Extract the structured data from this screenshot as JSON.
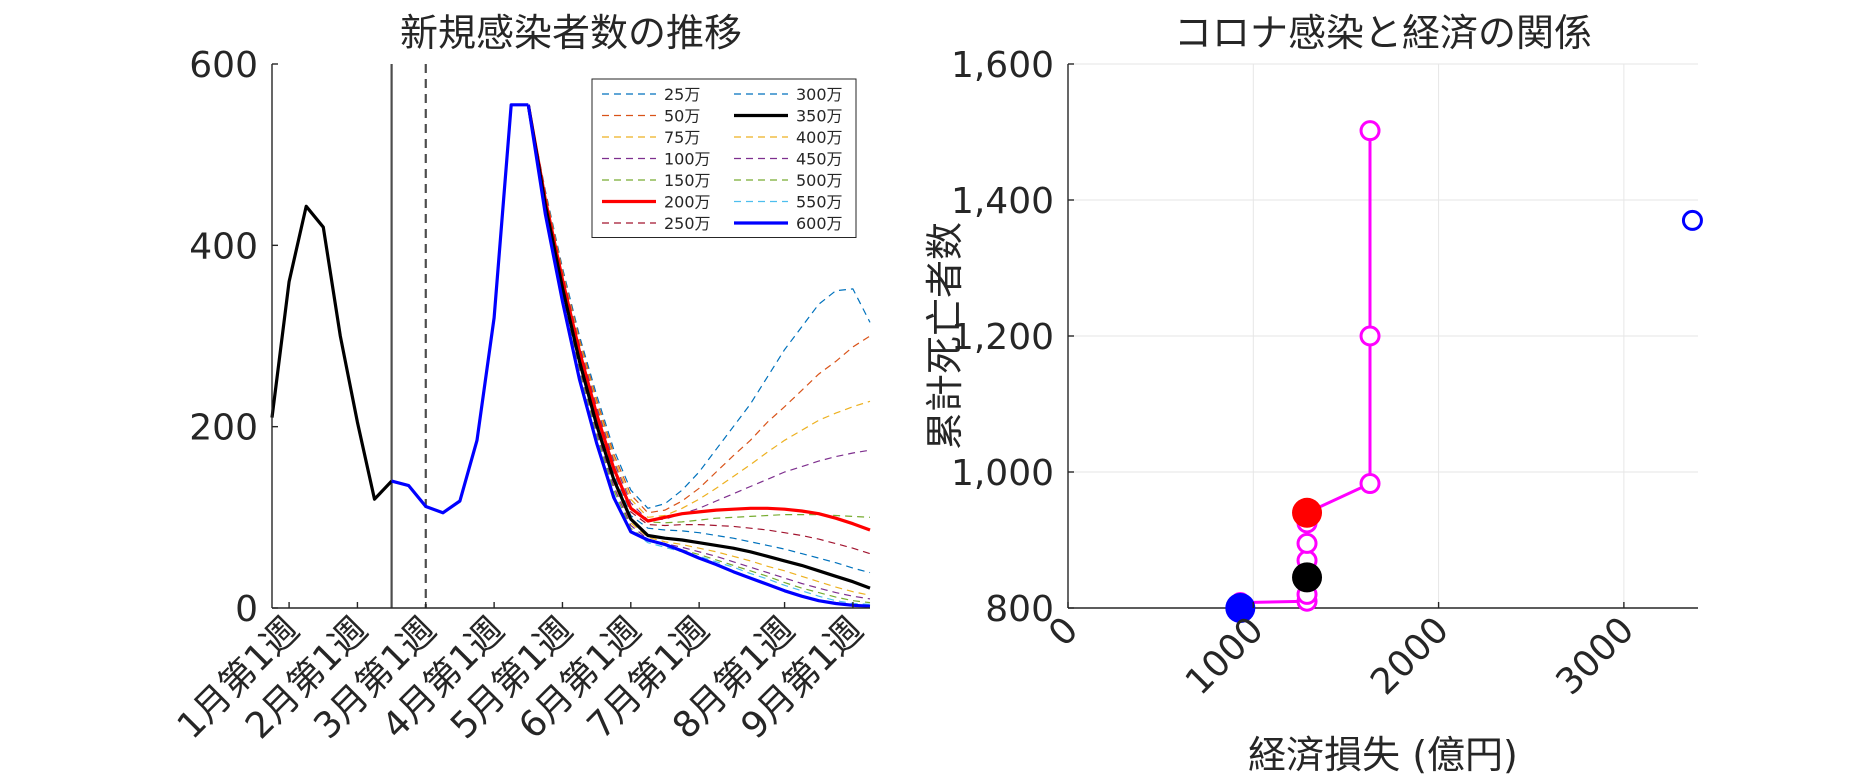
{
  "chart_data": [
    {
      "type": "line",
      "title": "新規感染者数の推移",
      "xlabel": "",
      "ylabel": "",
      "ylim": [
        0,
        600
      ],
      "yticks": [
        "0",
        "200",
        "400",
        "600"
      ],
      "xlim": [
        0,
        35
      ],
      "x_tick_positions": [
        1,
        5,
        9,
        13,
        17,
        21,
        25,
        30,
        34
      ],
      "x_tick_labels": [
        "1月第1週",
        "2月第1週",
        "3月第1週",
        "4月第1週",
        "5月第1週",
        "6月第1週",
        "7月第1週",
        "8月第1週",
        "9月第1週"
      ],
      "vertical_lines": [
        {
          "x": 7,
          "style": "solid",
          "color": "#4d4d4d"
        },
        {
          "x": 9,
          "style": "dashed",
          "color": "#4d4d4d"
        }
      ],
      "legend_position": "top-right",
      "legend": [
        "25万",
        "50万",
        "75万",
        "100万",
        "150万",
        "200万",
        "250万",
        "300万",
        "350万",
        "400万",
        "450万",
        "500万",
        "550万",
        "600万"
      ],
      "history": {
        "x": [
          0,
          1,
          2,
          3,
          4,
          5,
          6,
          7
        ],
        "y": [
          210,
          360,
          443,
          420,
          300,
          205,
          120,
          140
        ],
        "color": "#000000"
      },
      "common_blue": {
        "x": [
          7,
          8,
          9,
          10,
          11,
          12,
          13,
          14,
          15
        ],
        "y": [
          140,
          135,
          112,
          105,
          118,
          185,
          320,
          555,
          555
        ],
        "color": "#0000ff"
      },
      "scenario_x": [
        15,
        16,
        17,
        18,
        19,
        20,
        21,
        22,
        23,
        24,
        25,
        26,
        27,
        28,
        29,
        30,
        31,
        32,
        33,
        34,
        35
      ],
      "series": [
        {
          "name": "25万",
          "color": "#0072bd",
          "dash": true,
          "width": 1.2,
          "y": [
            555,
            460,
            375,
            300,
            235,
            175,
            130,
            110,
            115,
            130,
            150,
            175,
            200,
            225,
            255,
            285,
            310,
            335,
            350,
            352,
            315
          ]
        },
        {
          "name": "50万",
          "color": "#d95319",
          "dash": true,
          "width": 1.2,
          "y": [
            555,
            458,
            372,
            296,
            230,
            170,
            125,
            105,
            108,
            118,
            132,
            150,
            168,
            185,
            205,
            222,
            240,
            258,
            272,
            288,
            300
          ]
        },
        {
          "name": "75万",
          "color": "#edb120",
          "dash": true,
          "width": 1.2,
          "y": [
            555,
            456,
            370,
            293,
            226,
            166,
            120,
            100,
            102,
            110,
            120,
            132,
            145,
            158,
            172,
            185,
            196,
            207,
            215,
            222,
            228
          ]
        },
        {
          "name": "100万",
          "color": "#7e2f8e",
          "dash": true,
          "width": 1.2,
          "y": [
            555,
            454,
            368,
            290,
            222,
            162,
            116,
            97,
            98,
            104,
            110,
            118,
            126,
            134,
            142,
            150,
            156,
            162,
            167,
            171,
            174
          ]
        },
        {
          "name": "150万",
          "color": "#77ac30",
          "dash": true,
          "width": 1.2,
          "y": [
            555,
            452,
            365,
            286,
            218,
            158,
            112,
            95,
            94,
            95,
            97,
            99,
            100,
            101,
            102,
            103,
            103,
            103,
            102,
            101,
            100
          ]
        },
        {
          "name": "200万",
          "color": "#ff0000",
          "dash": false,
          "width": 3.2,
          "y": [
            555,
            450,
            362,
            283,
            214,
            154,
            110,
            96,
            100,
            104,
            106,
            108,
            109,
            110,
            110,
            109,
            107,
            104,
            99,
            93,
            86
          ]
        },
        {
          "name": "250万",
          "color": "#a2142f",
          "dash": true,
          "width": 1.2,
          "y": [
            555,
            448,
            359,
            280,
            210,
            150,
            106,
            92,
            91,
            92,
            92,
            91,
            90,
            88,
            86,
            83,
            80,
            76,
            71,
            66,
            60
          ]
        },
        {
          "name": "300万",
          "color": "#0072bd",
          "dash": true,
          "width": 1.2,
          "y": [
            555,
            446,
            356,
            276,
            206,
            146,
            102,
            88,
            86,
            85,
            83,
            80,
            77,
            73,
            69,
            65,
            60,
            55,
            50,
            44,
            39
          ]
        },
        {
          "name": "350万",
          "color": "#000000",
          "dash": false,
          "width": 3.2,
          "y": [
            555,
            444,
            353,
            272,
            202,
            142,
            98,
            80,
            77,
            75,
            72,
            69,
            66,
            62,
            57,
            52,
            47,
            41,
            35,
            29,
            22
          ]
        },
        {
          "name": "400万",
          "color": "#edb120",
          "dash": true,
          "width": 1.2,
          "y": [
            555,
            442,
            350,
            268,
            198,
            138,
            94,
            78,
            73,
            70,
            66,
            62,
            57,
            52,
            46,
            41,
            35,
            29,
            23,
            18,
            14
          ]
        },
        {
          "name": "450万",
          "color": "#7e2f8e",
          "dash": true,
          "width": 1.2,
          "y": [
            555,
            440,
            347,
            264,
            194,
            134,
            91,
            76,
            71,
            67,
            62,
            57,
            51,
            45,
            39,
            33,
            27,
            22,
            17,
            13,
            10
          ]
        },
        {
          "name": "500万",
          "color": "#77ac30",
          "dash": true,
          "width": 1.2,
          "y": [
            555,
            438,
            344,
            260,
            190,
            130,
            88,
            74,
            69,
            64,
            59,
            53,
            47,
            41,
            35,
            28,
            22,
            17,
            12,
            8,
            6
          ]
        },
        {
          "name": "550万",
          "color": "#4dbeee",
          "dash": true,
          "width": 1.2,
          "y": [
            555,
            436,
            341,
            256,
            186,
            126,
            86,
            72,
            67,
            62,
            57,
            51,
            45,
            38,
            32,
            25,
            19,
            13,
            8,
            5,
            4
          ]
        },
        {
          "name": "600万",
          "color": "#0000ff",
          "dash": false,
          "width": 3.2,
          "y": [
            555,
            434,
            338,
            252,
            182,
            122,
            84,
            75,
            70,
            63,
            55,
            48,
            40,
            33,
            26,
            19,
            13,
            8,
            5,
            3,
            2
          ]
        }
      ]
    },
    {
      "type": "scatter",
      "title": "コロナ感染と経済の関係",
      "xlabel": "経済損失 (億円)",
      "ylabel": "累計死亡者数",
      "xlim": [
        0,
        3400
      ],
      "ylim": [
        800,
        1600
      ],
      "xticks": [
        "0",
        "1000",
        "2000",
        "3000"
      ],
      "yticks": [
        "800",
        "1,000",
        "1,200",
        "1,400",
        "1,600"
      ],
      "grid": true,
      "path": {
        "color": "#ff00ff",
        "x": [
          930,
          1290,
          1290,
          1290,
          1290,
          1290,
          1290,
          1290,
          1630,
          1630,
          1630
        ],
        "y": [
          808,
          810,
          820,
          845,
          870,
          895,
          925,
          940,
          983,
          1200,
          1502
        ]
      },
      "hollow_points": {
        "color": "#ff00ff",
        "x": [
          930,
          1290,
          1290,
          1290,
          1290,
          1290,
          1630,
          1630,
          1630
        ],
        "y": [
          808,
          810,
          820,
          870,
          895,
          925,
          983,
          1200,
          1502
        ]
      },
      "filled_points": [
        {
          "name": "200万",
          "x": 1290,
          "y": 940,
          "color": "#ff0000"
        },
        {
          "name": "350万",
          "x": 1290,
          "y": 845,
          "color": "#000000"
        },
        {
          "name": "600万",
          "x": 930,
          "y": 800,
          "color": "#0000ff"
        }
      ],
      "outlier": {
        "x": 3370,
        "y": 1370,
        "color": "#0000ff"
      }
    }
  ]
}
